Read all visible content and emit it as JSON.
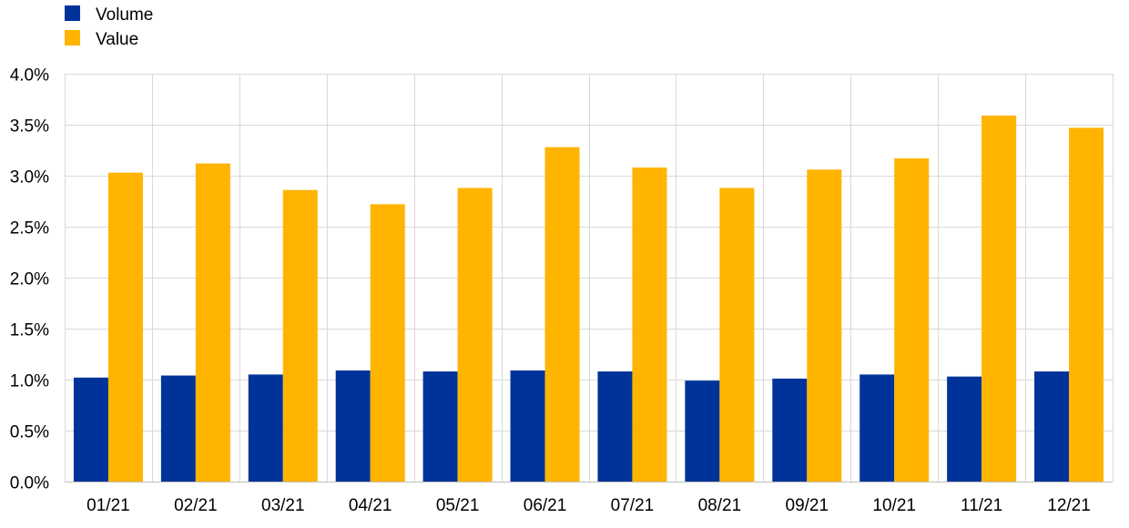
{
  "chart_data": {
    "type": "bar",
    "categories": [
      "01/21",
      "02/21",
      "03/21",
      "04/21",
      "05/21",
      "06/21",
      "07/21",
      "08/21",
      "09/21",
      "10/21",
      "11/21",
      "12/21"
    ],
    "series": [
      {
        "name": "Volume",
        "color": "#003399",
        "values": [
          1.02,
          1.04,
          1.05,
          1.09,
          1.08,
          1.09,
          1.08,
          0.99,
          1.01,
          1.05,
          1.03,
          1.08
        ]
      },
      {
        "name": "Value",
        "color": "#FFB400",
        "values": [
          3.03,
          3.12,
          2.86,
          2.72,
          2.88,
          3.28,
          3.08,
          2.88,
          3.06,
          3.17,
          3.59,
          3.47
        ]
      }
    ],
    "ylim": [
      0,
      4.0
    ],
    "yticks": [
      0.0,
      0.5,
      1.0,
      1.5,
      2.0,
      2.5,
      3.0,
      3.5,
      4.0
    ],
    "ytick_labels": [
      "0.0%",
      "0.5%",
      "1.0%",
      "1.5%",
      "2.0%",
      "2.5%",
      "3.0%",
      "3.5%",
      "4.0%"
    ],
    "grid": true,
    "legend_position": "top-left"
  }
}
